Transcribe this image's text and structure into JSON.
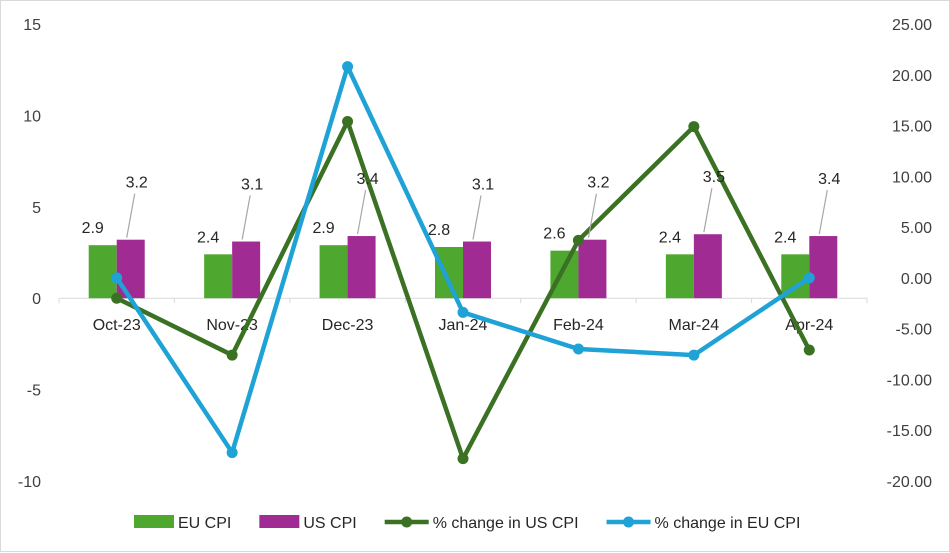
{
  "chart_data": {
    "type": "bar",
    "categories": [
      "Oct-23",
      "Nov-23",
      "Dec-23",
      "Jan-24",
      "Feb-24",
      "Mar-24",
      "Apr-24"
    ],
    "y_left": {
      "min": -10,
      "max": 15,
      "ticks": [
        15,
        10,
        5,
        0,
        -5,
        -10
      ],
      "tick_labels": [
        "15",
        "10",
        "5",
        "0",
        "-5",
        "-10"
      ]
    },
    "y_right": {
      "min": -20,
      "max": 25,
      "ticks": [
        25,
        20,
        15,
        10,
        5,
        0,
        -5,
        -10,
        -15,
        -20
      ],
      "tick_labels": [
        "25.00",
        "20.00",
        "15.00",
        "10.00",
        "5.00",
        "0.00",
        "-5.00",
        "-10.00",
        "-15.00",
        "-20.00"
      ]
    },
    "series": [
      {
        "name": "EU CPI",
        "kind": "bar",
        "axis": "left",
        "color": "#4EA72E",
        "values": [
          2.9,
          2.4,
          2.9,
          2.8,
          2.6,
          2.4,
          2.4
        ],
        "labels": [
          "2.9",
          "2.4",
          "2.9",
          "2.8",
          "2.6",
          "2.4",
          "2.4"
        ]
      },
      {
        "name": "US CPI",
        "kind": "bar",
        "axis": "left",
        "color": "#A02B93",
        "values": [
          3.2,
          3.1,
          3.4,
          3.1,
          3.2,
          3.5,
          3.4
        ],
        "labels": [
          "3.2",
          "3.1",
          "3.4",
          "3.1",
          "3.2",
          "3.5",
          "3.4"
        ]
      },
      {
        "name": "% change in US CPI",
        "kind": "line",
        "axis": "right",
        "color": "#3A7123",
        "values": [
          -2.0,
          -7.6,
          15.4,
          -17.8,
          3.7,
          14.9,
          -7.1
        ]
      },
      {
        "name": "% change in EU CPI",
        "kind": "line",
        "axis": "right",
        "color": "#1FA2D6",
        "values": [
          0.0,
          -17.2,
          20.8,
          -3.4,
          -7.0,
          -7.6,
          0.0
        ]
      }
    ],
    "legend_position": "bottom",
    "grid": false
  }
}
